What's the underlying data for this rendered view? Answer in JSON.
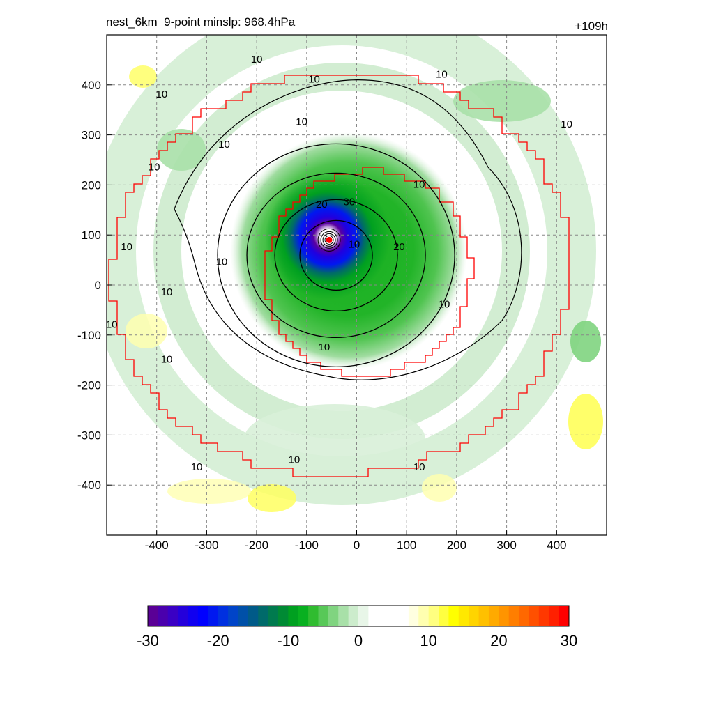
{
  "chart_data": {
    "type": "heatmap",
    "title": "nest_6km  9-point minslp: 968.4hPa",
    "time_label": "+109h",
    "xlim": [
      -500,
      500
    ],
    "ylim": [
      -500,
      500
    ],
    "x_ticks": [
      -400,
      -300,
      -200,
      -100,
      0,
      100,
      200,
      300,
      400
    ],
    "y_ticks": [
      400,
      300,
      200,
      100,
      0,
      -100,
      -200,
      -300,
      -400
    ],
    "x_tick_labels": [
      "-400",
      "-300",
      "-200",
      "-100",
      "0",
      "100",
      "200",
      "300",
      "400"
    ],
    "y_tick_labels": [
      "400",
      "300",
      "200",
      "100",
      "0",
      "-100",
      "-200",
      "-300",
      "-400"
    ],
    "grid": true,
    "storm_center": {
      "x": -55,
      "y": 90
    },
    "colorbar": {
      "range": [
        -30,
        30
      ],
      "tick_values": [
        -30,
        -20,
        -10,
        0,
        10,
        20,
        30
      ],
      "tick_labels": [
        "-30",
        "-20",
        "-10",
        "0",
        "10",
        "20",
        "30"
      ],
      "colors": [
        "#5a0096",
        "#4a00ad",
        "#3a00c4",
        "#2400db",
        "#1000f0",
        "#0000ff",
        "#0018f0",
        "#0030e0",
        "#0044c8",
        "#0050a8",
        "#005a88",
        "#006a6a",
        "#007a4e",
        "#008a34",
        "#00a020",
        "#08b020",
        "#30bc30",
        "#58c858",
        "#80d480",
        "#a8e0a8",
        "#cceccc",
        "#e8f6e8",
        "#ffffff",
        "#ffffff",
        "#ffffff",
        "#ffffff",
        "#ffffe0",
        "#ffffb0",
        "#ffff80",
        "#ffff40",
        "#ffff00",
        "#ffe800",
        "#ffd400",
        "#ffc000",
        "#ffaa00",
        "#ff9400",
        "#ff7e00",
        "#ff6800",
        "#ff5000",
        "#ff3800",
        "#ff2000",
        "#ff0000"
      ]
    },
    "contour_labels": [
      {
        "x": -200,
        "y": 450,
        "text": "10"
      },
      {
        "x": -390,
        "y": 380,
        "text": "10"
      },
      {
        "x": -85,
        "y": 410,
        "text": "10"
      },
      {
        "x": 170,
        "y": 420,
        "text": "10"
      },
      {
        "x": -110,
        "y": 325,
        "text": "10"
      },
      {
        "x": -265,
        "y": 280,
        "text": "10"
      },
      {
        "x": -405,
        "y": 235,
        "text": "10"
      },
      {
        "x": 420,
        "y": 320,
        "text": "10"
      },
      {
        "x": 125,
        "y": 200,
        "text": "10"
      },
      {
        "x": -460,
        "y": 75,
        "text": "10"
      },
      {
        "x": -270,
        "y": 45,
        "text": "10"
      },
      {
        "x": -380,
        "y": -15,
        "text": "10"
      },
      {
        "x": -490,
        "y": -80,
        "text": "10"
      },
      {
        "x": -380,
        "y": -150,
        "text": "10"
      },
      {
        "x": -70,
        "y": 160,
        "text": "20"
      },
      {
        "x": -15,
        "y": 165,
        "text": "30"
      },
      {
        "x": -5,
        "y": 80,
        "text": "10"
      },
      {
        "x": 85,
        "y": 75,
        "text": "20"
      },
      {
        "x": 175,
        "y": -40,
        "text": "10"
      },
      {
        "x": -65,
        "y": -125,
        "text": "10"
      },
      {
        "x": -125,
        "y": -350,
        "text": "10"
      },
      {
        "x": -320,
        "y": -365,
        "text": "10"
      },
      {
        "x": 125,
        "y": -365,
        "text": "10"
      }
    ]
  }
}
